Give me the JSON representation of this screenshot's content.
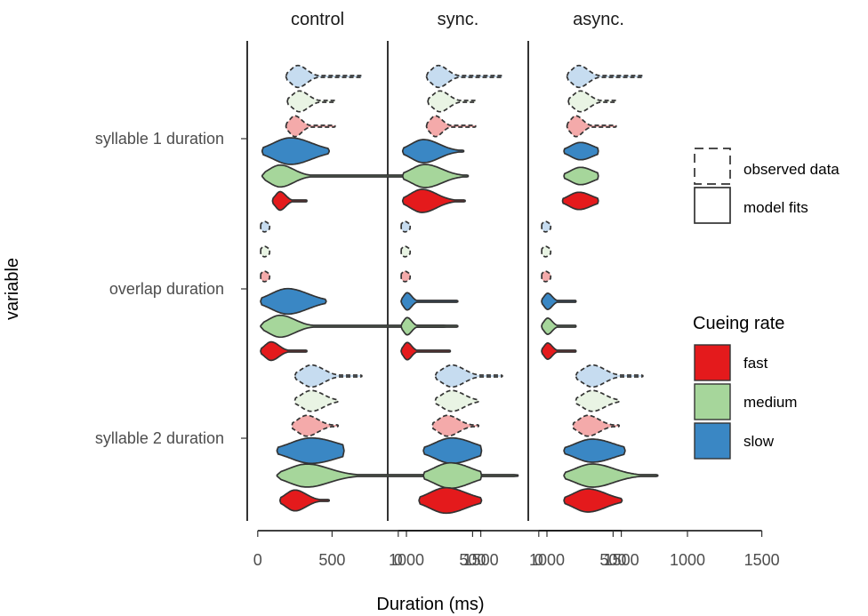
{
  "chart_data": {
    "type": "violin",
    "xlabel": "Duration (ms)",
    "ylabel": "variable",
    "xlim": [
      -150,
      1800
    ],
    "x_ticks": [
      0,
      500,
      1000,
      1500
    ],
    "x_tick_labels": [
      "0",
      "500",
      "1000",
      "1500"
    ],
    "panels": [
      "control",
      "sync.",
      "async."
    ],
    "variables": [
      "syllable 1 duration",
      "overlap duration",
      "syllable 2 duration"
    ],
    "rates": [
      "fast",
      "medium",
      "slow"
    ],
    "colors": {
      "fast": "#e41a1c",
      "medium": "#a6d69b",
      "slow": "#3a87c4",
      "fast_observed": "#f4aaaa",
      "medium_observed": "#e9f4e4",
      "slow_observed": "#c6dcf0"
    },
    "legend": {
      "type_entries": [
        "observed data",
        "model fits"
      ],
      "rate_title": "Cueing rate",
      "rate_entries": [
        "fast",
        "medium",
        "slow"
      ]
    },
    "violins": [
      {
        "panel": "control",
        "variable": "syllable 1 duration",
        "kind": "observed",
        "rate": "slow",
        "median": 270,
        "min": 190,
        "max": 700,
        "width": 0.95
      },
      {
        "panel": "control",
        "variable": "syllable 1 duration",
        "kind": "observed",
        "rate": "medium",
        "median": 280,
        "min": 200,
        "max": 520,
        "width": 0.9
      },
      {
        "panel": "control",
        "variable": "syllable 1 duration",
        "kind": "observed",
        "rate": "fast",
        "median": 250,
        "min": 190,
        "max": 520,
        "width": 0.9
      },
      {
        "panel": "control",
        "variable": "syllable 1 duration",
        "kind": "model",
        "rate": "slow",
        "median": 220,
        "min": 30,
        "max": 480,
        "width": 1.15
      },
      {
        "panel": "control",
        "variable": "syllable 1 duration",
        "kind": "model",
        "rate": "medium",
        "median": 150,
        "min": 30,
        "max": 1320,
        "width": 0.95
      },
      {
        "panel": "control",
        "variable": "syllable 1 duration",
        "kind": "model",
        "rate": "fast",
        "median": 150,
        "min": 100,
        "max": 330,
        "width": 0.8
      },
      {
        "panel": "control",
        "variable": "overlap duration",
        "kind": "observed",
        "rate": "slow",
        "median": 45,
        "min": 20,
        "max": 80,
        "width": 0.45
      },
      {
        "panel": "control",
        "variable": "overlap duration",
        "kind": "observed",
        "rate": "medium",
        "median": 45,
        "min": 20,
        "max": 80,
        "width": 0.45
      },
      {
        "panel": "control",
        "variable": "overlap duration",
        "kind": "observed",
        "rate": "fast",
        "median": 45,
        "min": 20,
        "max": 80,
        "width": 0.45
      },
      {
        "panel": "control",
        "variable": "overlap duration",
        "kind": "model",
        "rate": "slow",
        "median": 200,
        "min": 20,
        "max": 460,
        "width": 1.1
      },
      {
        "panel": "control",
        "variable": "overlap duration",
        "kind": "model",
        "rate": "medium",
        "median": 150,
        "min": 20,
        "max": 1270,
        "width": 0.95
      },
      {
        "panel": "control",
        "variable": "overlap duration",
        "kind": "model",
        "rate": "fast",
        "median": 90,
        "min": 20,
        "max": 330,
        "width": 0.8
      },
      {
        "panel": "control",
        "variable": "syllable 2 duration",
        "kind": "observed",
        "rate": "slow",
        "median": 360,
        "min": 250,
        "max": 700,
        "width": 0.95
      },
      {
        "panel": "control",
        "variable": "syllable 2 duration",
        "kind": "observed",
        "rate": "medium",
        "median": 360,
        "min": 250,
        "max": 540,
        "width": 0.9
      },
      {
        "panel": "control",
        "variable": "syllable 2 duration",
        "kind": "observed",
        "rate": "fast",
        "median": 330,
        "min": 230,
        "max": 540,
        "width": 0.9
      },
      {
        "panel": "control",
        "variable": "syllable 2 duration",
        "kind": "model",
        "rate": "slow",
        "median": 360,
        "min": 130,
        "max": 580,
        "width": 1.1
      },
      {
        "panel": "control",
        "variable": "syllable 2 duration",
        "kind": "model",
        "rate": "medium",
        "median": 330,
        "min": 130,
        "max": 1750,
        "width": 1.0
      },
      {
        "panel": "control",
        "variable": "syllable 2 duration",
        "kind": "model",
        "rate": "fast",
        "median": 250,
        "min": 150,
        "max": 480,
        "width": 0.9
      },
      {
        "panel": "sync.",
        "variable": "syllable 1 duration",
        "kind": "observed",
        "rate": "slow",
        "median": 270,
        "min": 190,
        "max": 700,
        "width": 0.95
      },
      {
        "panel": "sync.",
        "variable": "syllable 1 duration",
        "kind": "observed",
        "rate": "medium",
        "median": 280,
        "min": 200,
        "max": 520,
        "width": 0.9
      },
      {
        "panel": "sync.",
        "variable": "syllable 1 duration",
        "kind": "observed",
        "rate": "fast",
        "median": 250,
        "min": 190,
        "max": 520,
        "width": 0.9
      },
      {
        "panel": "sync.",
        "variable": "syllable 1 duration",
        "kind": "model",
        "rate": "slow",
        "median": 170,
        "min": 30,
        "max": 440,
        "width": 1.0
      },
      {
        "panel": "sync.",
        "variable": "syllable 1 duration",
        "kind": "model",
        "rate": "medium",
        "median": 180,
        "min": 30,
        "max": 470,
        "width": 1.0
      },
      {
        "panel": "sync.",
        "variable": "syllable 1 duration",
        "kind": "model",
        "rate": "fast",
        "median": 160,
        "min": 30,
        "max": 450,
        "width": 1.0
      },
      {
        "panel": "sync.",
        "variable": "overlap duration",
        "kind": "observed",
        "rate": "slow",
        "median": 45,
        "min": 20,
        "max": 80,
        "width": 0.45
      },
      {
        "panel": "sync.",
        "variable": "overlap duration",
        "kind": "observed",
        "rate": "medium",
        "median": 45,
        "min": 20,
        "max": 80,
        "width": 0.45
      },
      {
        "panel": "sync.",
        "variable": "overlap duration",
        "kind": "observed",
        "rate": "fast",
        "median": 45,
        "min": 20,
        "max": 80,
        "width": 0.45
      },
      {
        "panel": "sync.",
        "variable": "overlap duration",
        "kind": "model",
        "rate": "slow",
        "median": 60,
        "min": 20,
        "max": 400,
        "width": 0.75
      },
      {
        "panel": "sync.",
        "variable": "overlap duration",
        "kind": "model",
        "rate": "medium",
        "median": 60,
        "min": 20,
        "max": 400,
        "width": 0.75
      },
      {
        "panel": "sync.",
        "variable": "overlap duration",
        "kind": "model",
        "rate": "fast",
        "median": 60,
        "min": 20,
        "max": 350,
        "width": 0.75
      },
      {
        "panel": "sync.",
        "variable": "syllable 2 duration",
        "kind": "observed",
        "rate": "slow",
        "median": 360,
        "min": 250,
        "max": 700,
        "width": 0.95
      },
      {
        "panel": "sync.",
        "variable": "syllable 2 duration",
        "kind": "observed",
        "rate": "medium",
        "median": 360,
        "min": 250,
        "max": 540,
        "width": 0.9
      },
      {
        "panel": "sync.",
        "variable": "syllable 2 duration",
        "kind": "observed",
        "rate": "fast",
        "median": 330,
        "min": 230,
        "max": 540,
        "width": 0.9
      },
      {
        "panel": "sync.",
        "variable": "syllable 2 duration",
        "kind": "model",
        "rate": "slow",
        "median": 360,
        "min": 170,
        "max": 560,
        "width": 1.1
      },
      {
        "panel": "sync.",
        "variable": "syllable 2 duration",
        "kind": "model",
        "rate": "medium",
        "median": 350,
        "min": 170,
        "max": 560,
        "width": 1.1
      },
      {
        "panel": "sync.",
        "variable": "syllable 2 duration",
        "kind": "model",
        "rate": "fast",
        "median": 320,
        "min": 140,
        "max": 560,
        "width": 1.1
      },
      {
        "panel": "async.",
        "variable": "syllable 1 duration",
        "kind": "observed",
        "rate": "slow",
        "median": 270,
        "min": 190,
        "max": 700,
        "width": 0.95
      },
      {
        "panel": "async.",
        "variable": "syllable 1 duration",
        "kind": "observed",
        "rate": "medium",
        "median": 280,
        "min": 200,
        "max": 520,
        "width": 0.9
      },
      {
        "panel": "async.",
        "variable": "syllable 1 duration",
        "kind": "observed",
        "rate": "fast",
        "median": 250,
        "min": 190,
        "max": 520,
        "width": 0.9
      },
      {
        "panel": "async.",
        "variable": "syllable 1 duration",
        "kind": "model",
        "rate": "slow",
        "median": 280,
        "min": 170,
        "max": 400,
        "width": 0.75
      },
      {
        "panel": "async.",
        "variable": "syllable 1 duration",
        "kind": "model",
        "rate": "medium",
        "median": 280,
        "min": 170,
        "max": 400,
        "width": 0.75
      },
      {
        "panel": "async.",
        "variable": "syllable 1 duration",
        "kind": "model",
        "rate": "fast",
        "median": 270,
        "min": 160,
        "max": 400,
        "width": 0.75
      },
      {
        "panel": "async.",
        "variable": "overlap duration",
        "kind": "observed",
        "rate": "slow",
        "median": 45,
        "min": 20,
        "max": 80,
        "width": 0.45
      },
      {
        "panel": "async.",
        "variable": "overlap duration",
        "kind": "observed",
        "rate": "medium",
        "median": 45,
        "min": 20,
        "max": 80,
        "width": 0.45
      },
      {
        "panel": "async.",
        "variable": "overlap duration",
        "kind": "observed",
        "rate": "fast",
        "median": 45,
        "min": 20,
        "max": 80,
        "width": 0.45
      },
      {
        "panel": "async.",
        "variable": "overlap duration",
        "kind": "model",
        "rate": "slow",
        "median": 60,
        "min": 20,
        "max": 250,
        "width": 0.7
      },
      {
        "panel": "async.",
        "variable": "overlap duration",
        "kind": "model",
        "rate": "medium",
        "median": 60,
        "min": 20,
        "max": 250,
        "width": 0.7
      },
      {
        "panel": "async.",
        "variable": "overlap duration",
        "kind": "model",
        "rate": "fast",
        "median": 60,
        "min": 20,
        "max": 250,
        "width": 0.7
      },
      {
        "panel": "async.",
        "variable": "syllable 2 duration",
        "kind": "observed",
        "rate": "slow",
        "median": 360,
        "min": 250,
        "max": 700,
        "width": 0.95
      },
      {
        "panel": "async.",
        "variable": "syllable 2 duration",
        "kind": "observed",
        "rate": "medium",
        "median": 360,
        "min": 250,
        "max": 540,
        "width": 0.9
      },
      {
        "panel": "async.",
        "variable": "syllable 2 duration",
        "kind": "observed",
        "rate": "fast",
        "median": 330,
        "min": 230,
        "max": 540,
        "width": 0.9
      },
      {
        "panel": "async.",
        "variable": "syllable 2 duration",
        "kind": "model",
        "rate": "slow",
        "median": 360,
        "min": 170,
        "max": 580,
        "width": 1.0
      },
      {
        "panel": "async.",
        "variable": "syllable 2 duration",
        "kind": "model",
        "rate": "medium",
        "median": 360,
        "min": 170,
        "max": 800,
        "width": 1.0
      },
      {
        "panel": "async.",
        "variable": "syllable 2 duration",
        "kind": "model",
        "rate": "fast",
        "median": 330,
        "min": 170,
        "max": 560,
        "width": 1.0
      }
    ]
  }
}
